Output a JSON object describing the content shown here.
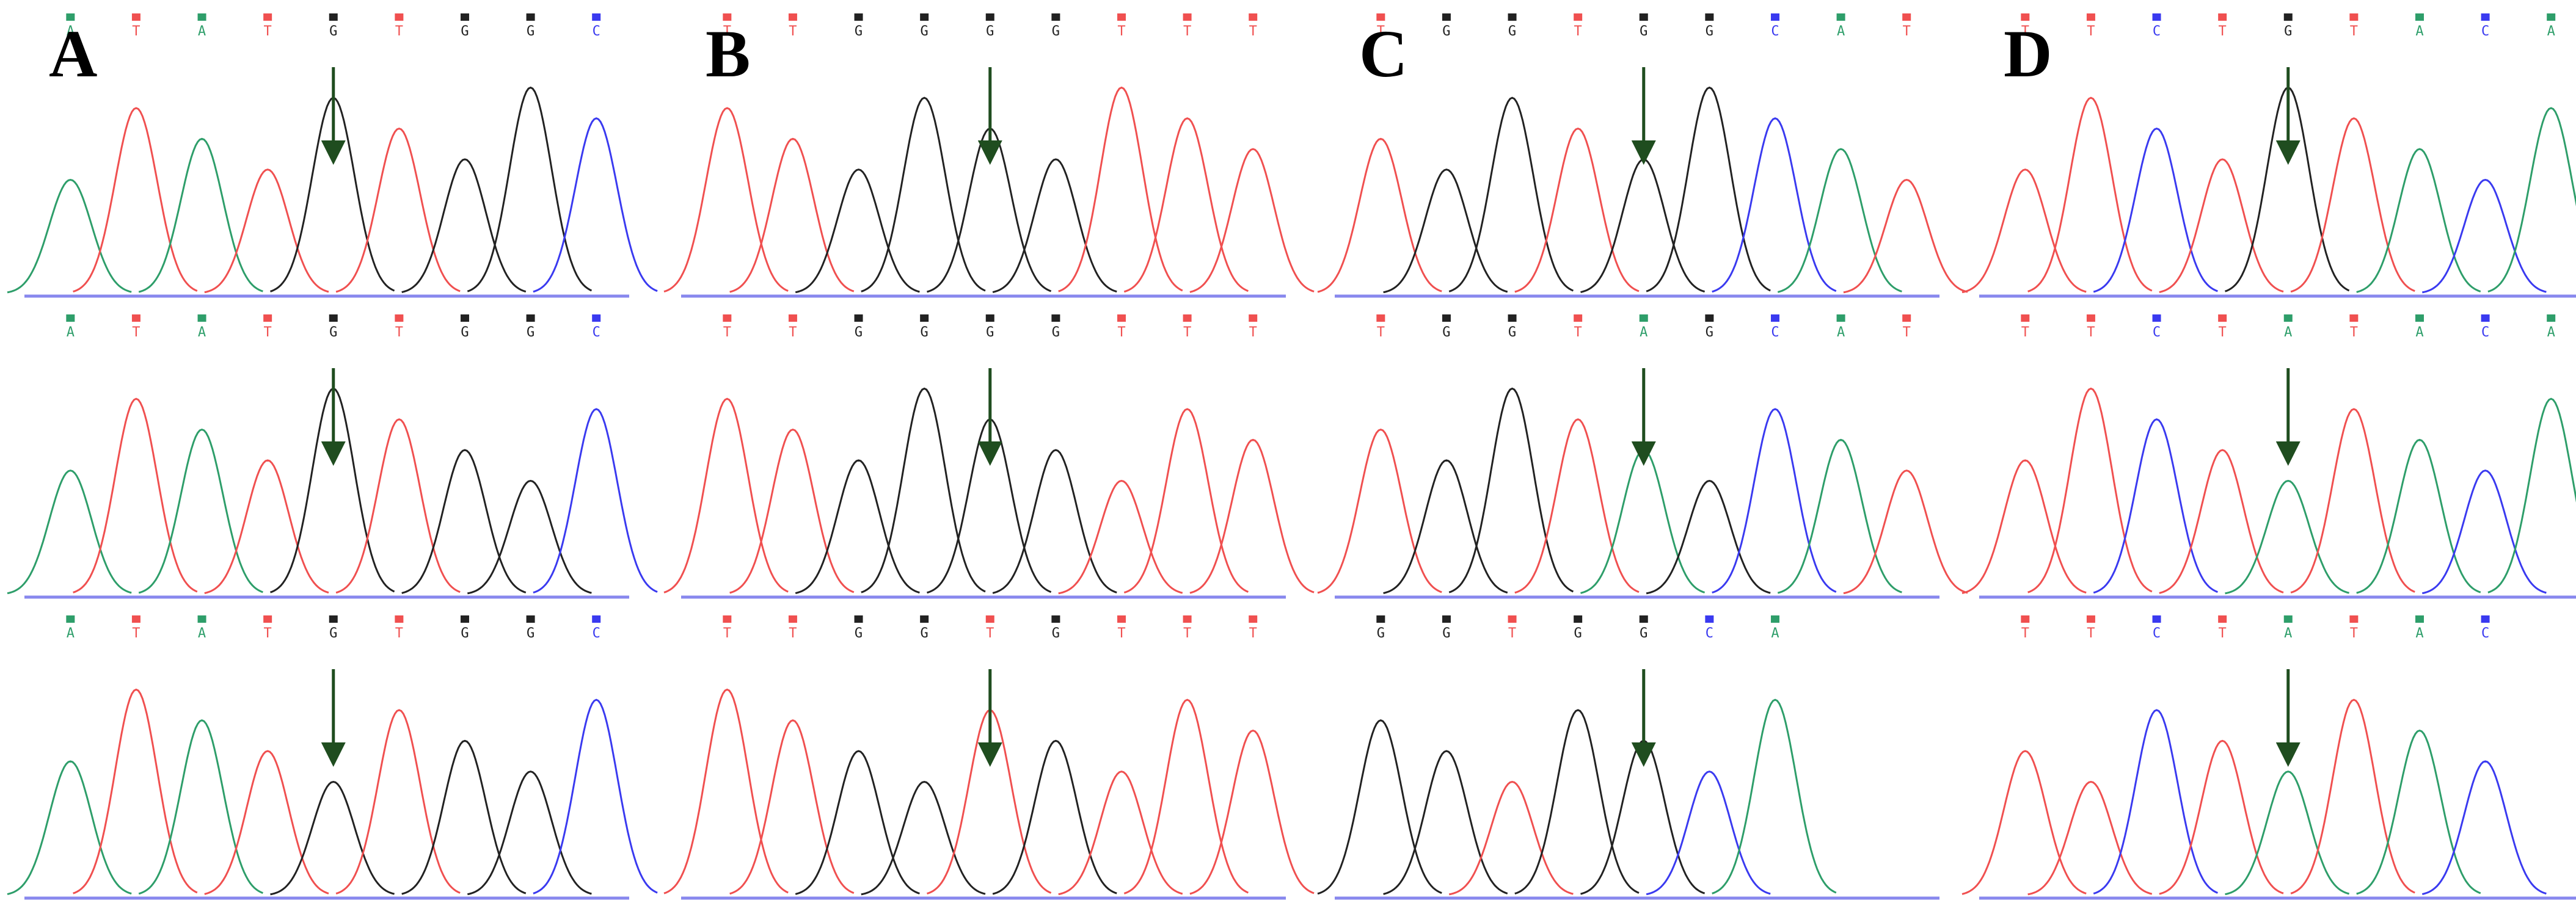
{
  "panels": [
    {
      "label": "A",
      "rows": [
        {
          "bases": [
            "A",
            "T",
            "A",
            "T",
            "G",
            "T",
            "G",
            "G",
            "C"
          ]
        },
        {
          "bases": [
            "A",
            "T",
            "A",
            "T",
            "G",
            "T",
            "G",
            "G",
            "C"
          ]
        },
        {
          "bases": [
            "A",
            "T",
            "A",
            "T",
            "G",
            "T",
            "G",
            "G",
            "C"
          ]
        }
      ]
    },
    {
      "label": "B",
      "rows": [
        {
          "bases": [
            "T",
            "T",
            "G",
            "G",
            "G",
            "G",
            "T",
            "T",
            "T"
          ]
        },
        {
          "bases": [
            "T",
            "T",
            "G",
            "G",
            "G",
            "G",
            "T",
            "T",
            "T"
          ]
        },
        {
          "bases": [
            "T",
            "T",
            "G",
            "G",
            "T",
            "G",
            "T",
            "T",
            "T"
          ]
        }
      ]
    },
    {
      "label": "C",
      "rows": [
        {
          "bases": [
            "T",
            "G",
            "G",
            "T",
            "G",
            "G",
            "C",
            "A",
            "T"
          ]
        },
        {
          "bases": [
            "T",
            "G",
            "G",
            "T",
            "A",
            "G",
            "C",
            "A",
            "T"
          ]
        },
        {
          "bases": [
            "G",
            "G",
            "T",
            "G",
            "G",
            "C",
            "A"
          ]
        }
      ]
    },
    {
      "label": "D",
      "rows": [
        {
          "bases": [
            "T",
            "T",
            "C",
            "T",
            "G",
            "T",
            "A",
            "C",
            "A"
          ]
        },
        {
          "bases": [
            "T",
            "T",
            "C",
            "T",
            "A",
            "T",
            "A",
            "C",
            "A"
          ]
        },
        {
          "bases": [
            "T",
            "T",
            "C",
            "T",
            "A",
            "T",
            "A",
            "C"
          ]
        }
      ]
    }
  ]
}
